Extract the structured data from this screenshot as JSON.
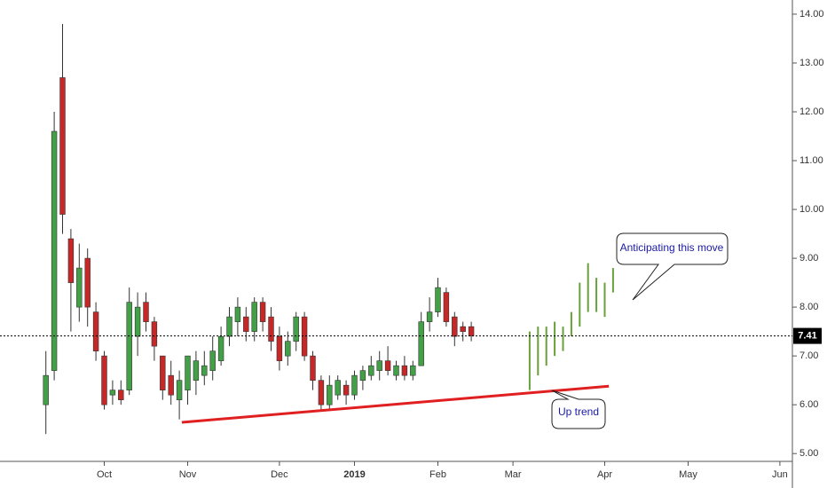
{
  "chart_data": {
    "type": "candlestick",
    "xlim": [
      -0.5,
      94.5
    ],
    "xticks": [
      {
        "value": 12,
        "label": "Oct"
      },
      {
        "value": 22,
        "label": "Nov"
      },
      {
        "value": 33,
        "label": "Dec"
      },
      {
        "value": 42,
        "label": "2019"
      },
      {
        "value": 52,
        "label": "Feb"
      },
      {
        "value": 61,
        "label": "Mar"
      },
      {
        "value": 72,
        "label": "Apr"
      },
      {
        "value": 82,
        "label": "May"
      },
      {
        "value": 93,
        "label": "Jun"
      }
    ],
    "ylim": [
      4.84,
      14.29
    ],
    "yticks": [
      {
        "value": 5,
        "label": "5.00"
      },
      {
        "value": 6,
        "label": "6.00"
      },
      {
        "value": 7,
        "label": "7.00"
      },
      {
        "value": 8,
        "label": "8.00"
      },
      {
        "value": 9,
        "label": "9.00"
      },
      {
        "value": 10,
        "label": "10.00"
      },
      {
        "value": 11,
        "label": "11.00"
      },
      {
        "value": 12,
        "label": "12.00"
      },
      {
        "value": 13,
        "label": "13.00"
      },
      {
        "value": 14,
        "label": "14.00"
      }
    ],
    "up_color": "#43a047",
    "down_color": "#c62828",
    "x": [
      5,
      6,
      7,
      8,
      9,
      10,
      11,
      12,
      13,
      14,
      15,
      16,
      17,
      18,
      19,
      20,
      21,
      22,
      23,
      24,
      25,
      26,
      27,
      28,
      29,
      30,
      31,
      32,
      33,
      34,
      35,
      36,
      37,
      38,
      39,
      40,
      41,
      42,
      43,
      44,
      45,
      46,
      47,
      48,
      49,
      50,
      51,
      52,
      53,
      54,
      55,
      56
    ],
    "open": [
      6.0,
      6.7,
      12.7,
      9.4,
      8.0,
      9.0,
      7.9,
      7.0,
      6.2,
      6.3,
      6.3,
      7.4,
      8.1,
      7.7,
      7.0,
      6.6,
      6.1,
      6.3,
      6.5,
      6.6,
      6.7,
      6.9,
      7.4,
      7.7,
      7.8,
      7.5,
      8.1,
      7.8,
      7.4,
      7.0,
      7.3,
      7.8,
      7.0,
      6.5,
      6.0,
      6.2,
      6.4,
      6.2,
      6.5,
      6.6,
      6.7,
      6.9,
      6.6,
      6.8,
      6.6,
      6.8,
      7.7,
      7.9,
      8.3,
      7.8,
      7.6,
      7.6
    ],
    "high": [
      7.1,
      12.0,
      13.8,
      9.6,
      9.3,
      9.2,
      8.1,
      7.1,
      6.5,
      6.5,
      8.4,
      8.3,
      8.3,
      7.8,
      7.0,
      6.9,
      6.7,
      7.0,
      7.1,
      7.1,
      7.4,
      7.6,
      8.0,
      8.2,
      8.0,
      8.2,
      8.2,
      8.0,
      7.6,
      7.5,
      7.9,
      7.9,
      7.1,
      6.6,
      6.6,
      6.6,
      6.5,
      6.7,
      6.8,
      7.0,
      7.1,
      7.2,
      6.9,
      7.0,
      6.9,
      7.9,
      8.2,
      8.6,
      8.4,
      7.9,
      7.7,
      7.7
    ],
    "low": [
      5.4,
      6.5,
      9.5,
      7.5,
      7.7,
      7.6,
      6.9,
      5.9,
      6.0,
      6.0,
      6.2,
      7.0,
      7.5,
      6.9,
      6.1,
      6.0,
      5.7,
      6.0,
      6.2,
      6.4,
      6.5,
      6.8,
      7.2,
      7.4,
      7.3,
      7.3,
      7.5,
      7.1,
      6.7,
      6.8,
      7.1,
      6.9,
      6.3,
      5.9,
      5.9,
      6.1,
      6.0,
      6.1,
      6.3,
      6.5,
      6.5,
      6.6,
      6.5,
      6.5,
      6.5,
      6.8,
      7.5,
      7.8,
      7.6,
      7.2,
      7.3,
      7.3
    ],
    "close": [
      6.6,
      11.6,
      9.9,
      8.5,
      8.8,
      8.0,
      7.1,
      6.0,
      6.3,
      6.1,
      8.1,
      8.0,
      7.7,
      7.2,
      6.3,
      6.2,
      6.5,
      7.0,
      6.9,
      6.8,
      7.1,
      7.4,
      7.8,
      8.0,
      7.5,
      8.1,
      7.7,
      7.3,
      6.9,
      7.3,
      7.8,
      7.0,
      6.5,
      6.0,
      6.4,
      6.5,
      6.2,
      6.6,
      6.7,
      6.8,
      6.9,
      6.7,
      6.8,
      6.6,
      6.8,
      7.7,
      7.9,
      8.4,
      7.7,
      7.4,
      7.5,
      7.41
    ],
    "last_price": 7.41,
    "projection": {
      "color": "#6a9f3a",
      "x": [
        63,
        64,
        65,
        66,
        67,
        68,
        69,
        70,
        71,
        72,
        73
      ],
      "low": [
        6.3,
        6.6,
        6.8,
        7.0,
        7.1,
        7.4,
        7.6,
        7.9,
        7.9,
        7.8,
        8.3
      ],
      "high": [
        7.5,
        7.6,
        7.6,
        7.7,
        7.6,
        7.9,
        8.5,
        8.9,
        8.6,
        8.5,
        8.8
      ]
    },
    "trendline": {
      "color": "#e02020",
      "x": [
        21.3,
        72.5
      ],
      "y": [
        5.64,
        6.38
      ]
    },
    "annotations": [
      "Anticipating this move",
      "Up trend"
    ]
  }
}
